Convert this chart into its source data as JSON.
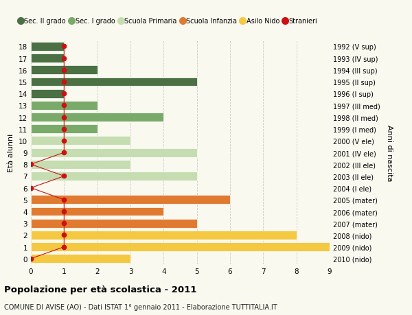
{
  "ages": [
    18,
    17,
    16,
    15,
    14,
    13,
    12,
    11,
    10,
    9,
    8,
    7,
    6,
    5,
    4,
    3,
    2,
    1,
    0
  ],
  "right_labels": [
    "1992 (V sup)",
    "1993 (IV sup)",
    "1994 (III sup)",
    "1995 (II sup)",
    "1996 (I sup)",
    "1997 (III med)",
    "1998 (II med)",
    "1999 (I med)",
    "2000 (V ele)",
    "2001 (IV ele)",
    "2002 (III ele)",
    "2003 (II ele)",
    "2004 (I ele)",
    "2005 (mater)",
    "2006 (mater)",
    "2007 (mater)",
    "2008 (nido)",
    "2009 (nido)",
    "2010 (nido)"
  ],
  "bar_values": [
    1,
    1,
    2,
    5,
    1,
    2,
    4,
    2,
    3,
    5,
    3,
    5,
    0,
    6,
    4,
    5,
    8,
    9,
    3
  ],
  "bar_colors": [
    "#4a7043",
    "#4a7043",
    "#4a7043",
    "#4a7043",
    "#4a7043",
    "#7aaa6a",
    "#7aaa6a",
    "#7aaa6a",
    "#c5ddb0",
    "#c5ddb0",
    "#c5ddb0",
    "#c5ddb0",
    "#c5ddb0",
    "#e07a30",
    "#e07a30",
    "#e07a30",
    "#f5c842",
    "#f5c842",
    "#f5c842"
  ],
  "stranieri_values": [
    1,
    1,
    1,
    1,
    1,
    1,
    1,
    1,
    1,
    1,
    0,
    1,
    0,
    1,
    1,
    1,
    1,
    1,
    0
  ],
  "stranieri_color": "#cc1111",
  "legend_labels": [
    "Sec. II grado",
    "Sec. I grado",
    "Scuola Primaria",
    "Scuola Infanzia",
    "Asilo Nido",
    "Stranieri"
  ],
  "legend_colors": [
    "#4a7043",
    "#7aaa6a",
    "#c5ddb0",
    "#e07a30",
    "#f5c842",
    "#cc1111"
  ],
  "ylabel_left": "Età alunni",
  "ylabel_right": "Anni di nascita",
  "xlim": [
    0,
    9
  ],
  "title": "Popolazione per età scolastica - 2011",
  "subtitle": "COMUNE DI AVISE (AO) - Dati ISTAT 1° gennaio 2011 - Elaborazione TUTTITALIA.IT",
  "bg_color": "#f9f9f0",
  "grid_color": "#cccccc",
  "bar_edge_color": "white"
}
